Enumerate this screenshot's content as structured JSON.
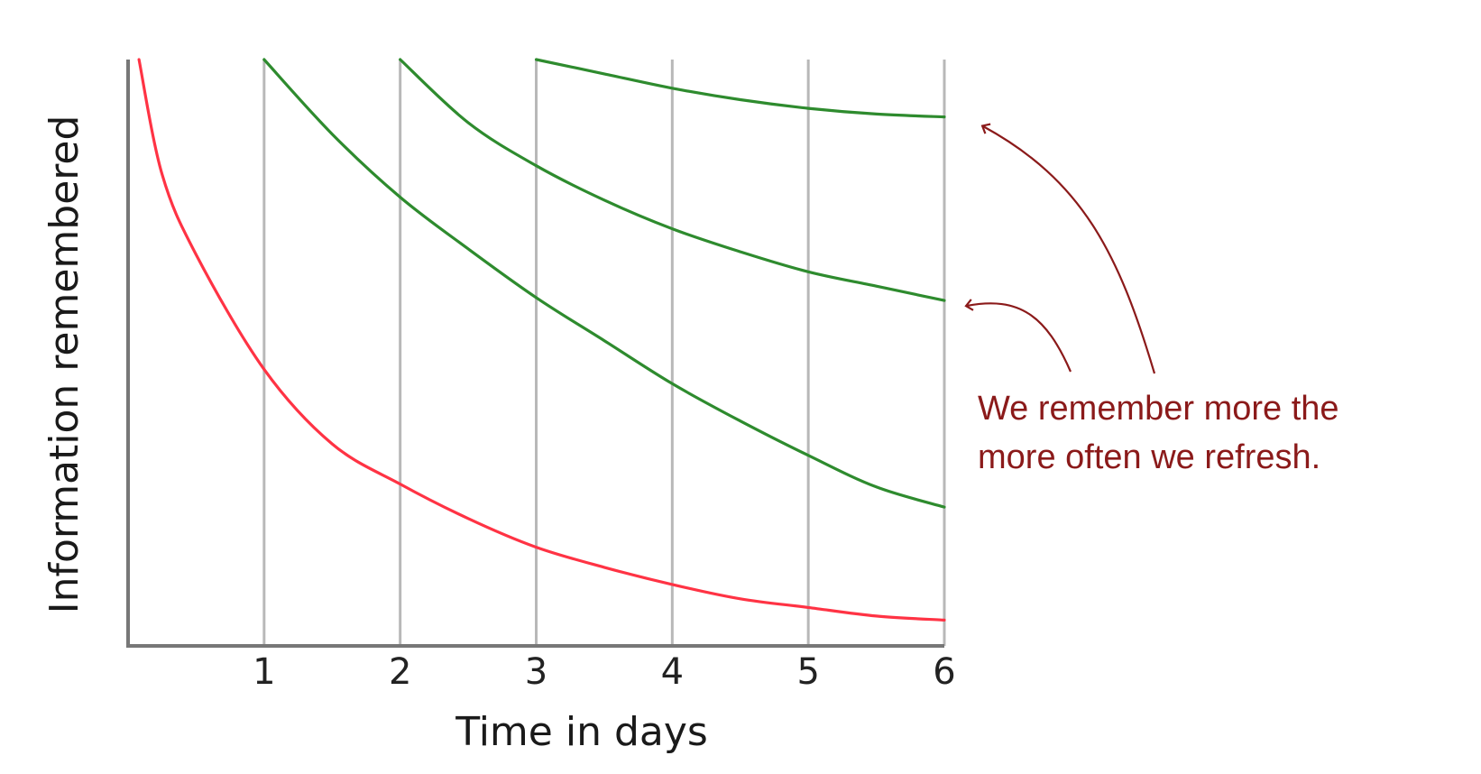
{
  "chart_data": {
    "type": "line",
    "xlabel": "Time in days",
    "ylabel": "Information remembered",
    "x_ticks": [
      "1",
      "2",
      "3",
      "4",
      "5",
      "6"
    ],
    "xlim": [
      0,
      6
    ],
    "ylim": [
      0,
      100
    ],
    "grid": {
      "vertical": true,
      "horizontal": false
    },
    "y_ticks_shown": false,
    "series": [
      {
        "color": "#ff3344",
        "x": [
          0.08,
          0.25,
          0.5,
          1,
          1.5,
          2,
          2.5,
          3,
          3.5,
          4,
          4.5,
          5,
          5.5,
          6
        ],
        "y": [
          100,
          80,
          66,
          46,
          33,
          26,
          20,
          15,
          11.5,
          8.5,
          6,
          4.5,
          3,
          2.3
        ]
      },
      {
        "color": "#2e8b2e",
        "x": [
          1,
          1.5,
          2,
          2.5,
          3,
          3.5,
          4,
          4.5,
          5,
          5.5,
          6
        ],
        "y": [
          100,
          87,
          76,
          67,
          58.5,
          51,
          43.5,
          37,
          31,
          25.5,
          22
        ]
      },
      {
        "color": "#2e8b2e",
        "x": [
          2,
          2.5,
          3,
          3.5,
          4,
          4.5,
          5,
          5.5,
          6
        ],
        "y": [
          100,
          89,
          81.5,
          75.5,
          70.5,
          66.5,
          63,
          60.5,
          58
        ]
      },
      {
        "color": "#2e8b2e",
        "x": [
          3,
          3.5,
          4,
          4.5,
          5,
          5.5,
          6
        ],
        "y": [
          100,
          97.5,
          95,
          93,
          91.5,
          90.5,
          90
        ]
      }
    ],
    "annotation": {
      "lines": [
        "We remember more the",
        "more often we refresh."
      ],
      "color": "#8b1a1a"
    }
  }
}
